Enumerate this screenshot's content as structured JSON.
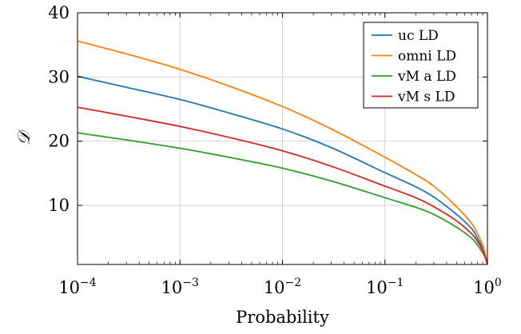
{
  "chart_data": {
    "type": "line",
    "xlabel": "Probability",
    "ylabel": "𝒟",
    "x_scale": "log",
    "xlim": [
      0.0001,
      1
    ],
    "ylim": [
      0.8,
      40
    ],
    "grid": true,
    "legend_position": "top-right",
    "x_ticks": [
      {
        "value": 0.0001,
        "base": "10",
        "exp": "−4"
      },
      {
        "value": 0.001,
        "base": "10",
        "exp": "−3"
      },
      {
        "value": 0.01,
        "base": "10",
        "exp": "−2"
      },
      {
        "value": 0.1,
        "base": "10",
        "exp": "−1"
      },
      {
        "value": 1,
        "base": "10",
        "exp": "0"
      }
    ],
    "y_ticks": [
      {
        "value": 10,
        "label": "10"
      },
      {
        "value": 20,
        "label": "20"
      },
      {
        "value": 30,
        "label": "30"
      },
      {
        "value": 40,
        "label": "40"
      }
    ],
    "x": [
      0.0001,
      0.0003,
      0.001,
      0.003,
      0.01,
      0.03,
      0.1,
      0.2,
      0.3,
      0.5,
      0.7,
      0.8,
      0.9,
      0.95,
      1.0
    ],
    "series": [
      {
        "name": "uc LD",
        "color": "#1f77b4",
        "values": [
          30.1,
          28.4,
          26.5,
          24.4,
          21.9,
          19.0,
          15.1,
          12.9,
          11.3,
          8.6,
          6.4,
          4.9,
          3.3,
          2.3,
          0.8
        ]
      },
      {
        "name": "omni LD",
        "color": "#ff7f0e",
        "values": [
          35.6,
          33.6,
          31.2,
          28.6,
          25.4,
          21.9,
          17.5,
          14.8,
          13.0,
          9.8,
          7.2,
          5.6,
          3.8,
          2.5,
          0.8
        ]
      },
      {
        "name": "vM a LD",
        "color": "#2ca02c",
        "values": [
          21.3,
          20.2,
          18.9,
          17.5,
          15.8,
          13.8,
          11.2,
          9.7,
          8.6,
          6.6,
          4.9,
          3.8,
          2.6,
          1.9,
          0.8
        ]
      },
      {
        "name": "vM s LD",
        "color": "#d62728",
        "values": [
          25.3,
          23.9,
          22.3,
          20.6,
          18.5,
          16.1,
          13.0,
          11.2,
          9.8,
          7.6,
          5.6,
          4.4,
          3.0,
          2.0,
          0.8
        ]
      }
    ]
  }
}
